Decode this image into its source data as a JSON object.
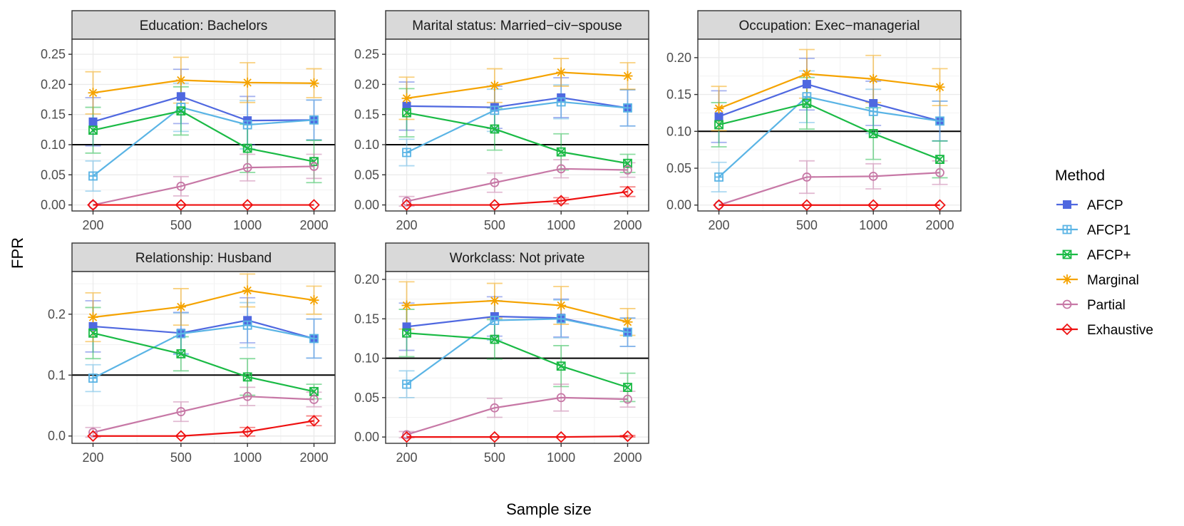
{
  "chart_data": {
    "type": "line",
    "x_axis_title": "Sample size",
    "y_axis_title": "FPR",
    "x_ticks": [
      "200",
      "500",
      "1000",
      "2000"
    ],
    "x_values": [
      200,
      500,
      1000,
      2000
    ],
    "x_scale": "log",
    "reference_line": 0.1,
    "legend": {
      "title": "Method",
      "placement": "right",
      "entries": [
        "AFCP",
        "AFCP1",
        "AFCP+",
        "Marginal",
        "Partial",
        "Exhaustive"
      ]
    },
    "methods": [
      {
        "name": "AFCP",
        "color": "#4f68e0",
        "marker": "filled-square"
      },
      {
        "name": "AFCP1",
        "color": "#5ab4e5",
        "marker": "square-plus"
      },
      {
        "name": "AFCP+",
        "color": "#1aba45",
        "marker": "square-x"
      },
      {
        "name": "Marginal",
        "color": "#f5a300",
        "marker": "asterisk"
      },
      {
        "name": "Partial",
        "color": "#c778a6",
        "marker": "circle"
      },
      {
        "name": "Exhaustive",
        "color": "#ee1111",
        "marker": "diamond"
      }
    ],
    "panels": [
      {
        "title": "Education: Bachelors",
        "ylim": [
          -0.01,
          0.275
        ],
        "y_ticks": [
          "0.00",
          "0.05",
          "0.10",
          "0.15",
          "0.20",
          "0.25"
        ],
        "y_tick_values": [
          0,
          0.05,
          0.1,
          0.15,
          0.2,
          0.25
        ],
        "series": [
          {
            "name": "AFCP",
            "values": [
              0.138,
              0.18,
              0.14,
              0.141
            ],
            "err": [
              0.04,
              0.045,
              0.04,
              0.033
            ]
          },
          {
            "name": "AFCP1",
            "values": [
              0.048,
              0.162,
              0.133,
              0.141
            ],
            "err": [
              0.025,
              0.04,
              0.04,
              0.033
            ]
          },
          {
            "name": "AFCP+",
            "values": [
              0.124,
              0.156,
              0.094,
              0.072
            ],
            "err": [
              0.038,
              0.04,
              0.04,
              0.035
            ]
          },
          {
            "name": "Marginal",
            "values": [
              0.186,
              0.207,
              0.203,
              0.202
            ],
            "err": [
              0.035,
              0.038,
              0.033,
              0.024
            ]
          },
          {
            "name": "Partial",
            "values": [
              0.0,
              0.031,
              0.062,
              0.064
            ],
            "err": [
              0.0,
              0.016,
              0.022,
              0.02
            ]
          },
          {
            "name": "Exhaustive",
            "values": [
              0.0,
              0.0,
              0.0,
              0.0
            ],
            "err": [
              0,
              0,
              0,
              0
            ]
          }
        ]
      },
      {
        "title": "Marital status: Married−civ−spouse",
        "ylim": [
          -0.01,
          0.275
        ],
        "y_ticks": [
          "0.00",
          "0.05",
          "0.10",
          "0.15",
          "0.20",
          "0.25"
        ],
        "y_tick_values": [
          0,
          0.05,
          0.1,
          0.15,
          0.2,
          0.25
        ],
        "series": [
          {
            "name": "AFCP",
            "values": [
              0.164,
              0.162,
              0.178,
              0.161
            ],
            "err": [
              0.04,
              0.035,
              0.033,
              0.03
            ]
          },
          {
            "name": "AFCP1",
            "values": [
              0.087,
              0.157,
              0.171,
              0.161
            ],
            "err": [
              0.022,
              0.035,
              0.028,
              0.03
            ]
          },
          {
            "name": "AFCP+",
            "values": [
              0.153,
              0.126,
              0.088,
              0.069
            ],
            "err": [
              0.04,
              0.035,
              0.03,
              0.015
            ]
          },
          {
            "name": "Marginal",
            "values": [
              0.177,
              0.198,
              0.22,
              0.214
            ],
            "err": [
              0.035,
              0.028,
              0.023,
              0.022
            ]
          },
          {
            "name": "Partial",
            "values": [
              0.006,
              0.037,
              0.06,
              0.058
            ],
            "err": [
              0.008,
              0.016,
              0.015,
              0.012
            ]
          },
          {
            "name": "Exhaustive",
            "values": [
              0.0,
              0.0,
              0.007,
              0.022
            ],
            "err": [
              0,
              0,
              0.005,
              0.008
            ]
          }
        ]
      },
      {
        "title": "Occupation: Exec−managerial",
        "ylim": [
          -0.008,
          0.225
        ],
        "y_ticks": [
          "0.00",
          "0.05",
          "0.10",
          "0.15",
          "0.20"
        ],
        "y_tick_values": [
          0,
          0.05,
          0.1,
          0.15,
          0.2
        ],
        "series": [
          {
            "name": "AFCP",
            "values": [
              0.12,
              0.164,
              0.138,
              0.114
            ],
            "err": [
              0.035,
              0.035,
              0.03,
              0.027
            ]
          },
          {
            "name": "AFCP1",
            "values": [
              0.038,
              0.147,
              0.127,
              0.114
            ],
            "err": [
              0.02,
              0.035,
              0.03,
              0.027
            ]
          },
          {
            "name": "AFCP+",
            "values": [
              0.109,
              0.138,
              0.097,
              0.062
            ],
            "err": [
              0.03,
              0.035,
              0.035,
              0.025
            ]
          },
          {
            "name": "Marginal",
            "values": [
              0.131,
              0.178,
              0.171,
              0.16
            ],
            "err": [
              0.03,
              0.033,
              0.032,
              0.025
            ]
          },
          {
            "name": "Partial",
            "values": [
              0.0,
              0.038,
              0.039,
              0.044
            ],
            "err": [
              0.0,
              0.022,
              0.017,
              0.016
            ]
          },
          {
            "name": "Exhaustive",
            "values": [
              0.0,
              0.0,
              0.0,
              0.0
            ],
            "err": [
              0,
              0,
              0,
              0
            ]
          }
        ]
      },
      {
        "title": "Relationship: Husband",
        "ylim": [
          -0.012,
          0.27
        ],
        "y_ticks": [
          "0.0",
          "0.1",
          "0.2"
        ],
        "y_tick_values": [
          0,
          0.1,
          0.2
        ],
        "series": [
          {
            "name": "AFCP",
            "values": [
              0.18,
              0.169,
              0.19,
              0.16
            ],
            "err": [
              0.042,
              0.034,
              0.037,
              0.032
            ]
          },
          {
            "name": "AFCP1",
            "values": [
              0.095,
              0.168,
              0.182,
              0.16
            ],
            "err": [
              0.022,
              0.034,
              0.037,
              0.032
            ]
          },
          {
            "name": "AFCP+",
            "values": [
              0.169,
              0.135,
              0.097,
              0.073
            ],
            "err": [
              0.042,
              0.028,
              0.03,
              0.012
            ]
          },
          {
            "name": "Marginal",
            "values": [
              0.195,
              0.212,
              0.239,
              0.223
            ],
            "err": [
              0.04,
              0.03,
              0.027,
              0.023
            ]
          },
          {
            "name": "Partial",
            "values": [
              0.006,
              0.04,
              0.065,
              0.06
            ],
            "err": [
              0.008,
              0.016,
              0.015,
              0.012
            ]
          },
          {
            "name": "Exhaustive",
            "values": [
              0.0,
              0.0,
              0.007,
              0.025
            ],
            "err": [
              0,
              0,
              0.007,
              0.008
            ]
          }
        ]
      },
      {
        "title": "Workclass: Not private",
        "ylim": [
          -0.008,
          0.21
        ],
        "y_ticks": [
          "0.00",
          "0.05",
          "0.10",
          "0.15",
          "0.20"
        ],
        "y_tick_values": [
          0,
          0.05,
          0.1,
          0.15,
          0.2
        ],
        "series": [
          {
            "name": "AFCP",
            "values": [
              0.14,
              0.153,
              0.151,
              0.133
            ],
            "err": [
              0.03,
              0.025,
              0.024,
              0.018
            ]
          },
          {
            "name": "AFCP1",
            "values": [
              0.067,
              0.148,
              0.15,
              0.133
            ],
            "err": [
              0.017,
              0.025,
              0.024,
              0.018
            ]
          },
          {
            "name": "AFCP+",
            "values": [
              0.132,
              0.124,
              0.09,
              0.063
            ],
            "err": [
              0.03,
              0.025,
              0.026,
              0.018
            ]
          },
          {
            "name": "Marginal",
            "values": [
              0.167,
              0.173,
              0.167,
              0.146
            ],
            "err": [
              0.03,
              0.022,
              0.024,
              0.017
            ]
          },
          {
            "name": "Partial",
            "values": [
              0.003,
              0.037,
              0.05,
              0.048
            ],
            "err": [
              0.004,
              0.012,
              0.017,
              0.01
            ]
          },
          {
            "name": "Exhaustive",
            "values": [
              0.0,
              0.0,
              0.0,
              0.001
            ],
            "err": [
              0,
              0,
              0,
              0.001
            ]
          }
        ]
      }
    ]
  }
}
